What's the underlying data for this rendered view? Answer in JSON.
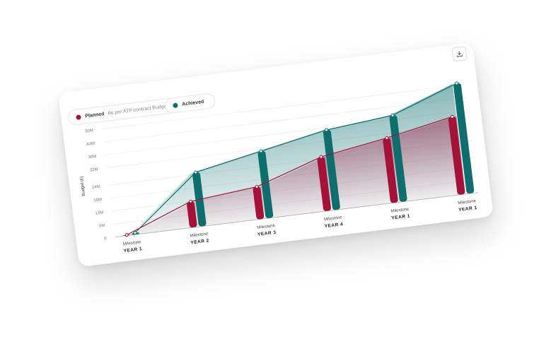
{
  "legend": {
    "planned_label": "Planned",
    "planned_sub": "As per ATP contract Budget",
    "achieved_label": "Achieved"
  },
  "colors": {
    "planned": "#a4123a",
    "achieved": "#0e6e6e",
    "grid": "#ececec"
  },
  "icons": {
    "download": "download-icon"
  },
  "chart_data": {
    "type": "bar",
    "ylabel": "Budget (£)",
    "ylim": [
      0,
      50
    ],
    "y_ticks": [
      {
        "v": 0,
        "label": "0"
      },
      {
        "v": 6,
        "label": "6M"
      },
      {
        "v": 12,
        "label": "12M"
      },
      {
        "v": 18,
        "label": "18M"
      },
      {
        "v": 24,
        "label": "24M"
      },
      {
        "v": 32,
        "label": "32M"
      },
      {
        "v": 38,
        "label": "38M"
      },
      {
        "v": 44,
        "label": "44M"
      },
      {
        "v": 50,
        "label": "50M"
      }
    ],
    "categories": [
      {
        "line1": "Milestone",
        "line2": "YEAR 1"
      },
      {
        "line1": "Milestone",
        "line2": "YEAR 2"
      },
      {
        "line1": "Milestone",
        "line2": "YEAR 3"
      },
      {
        "line1": "Milestone",
        "line2": "YEAR 4"
      },
      {
        "line1": "Milestone",
        "line2": "YEAR 1"
      },
      {
        "line1": "Milestone",
        "line2": "YEAR 1"
      }
    ],
    "series": [
      {
        "name": "Planned",
        "values": [
          0.3,
          12,
          15,
          25,
          30,
          36
        ]
      },
      {
        "name": "Achieved",
        "values": [
          0.8,
          25,
          31,
          37,
          40,
          51
        ]
      }
    ]
  }
}
